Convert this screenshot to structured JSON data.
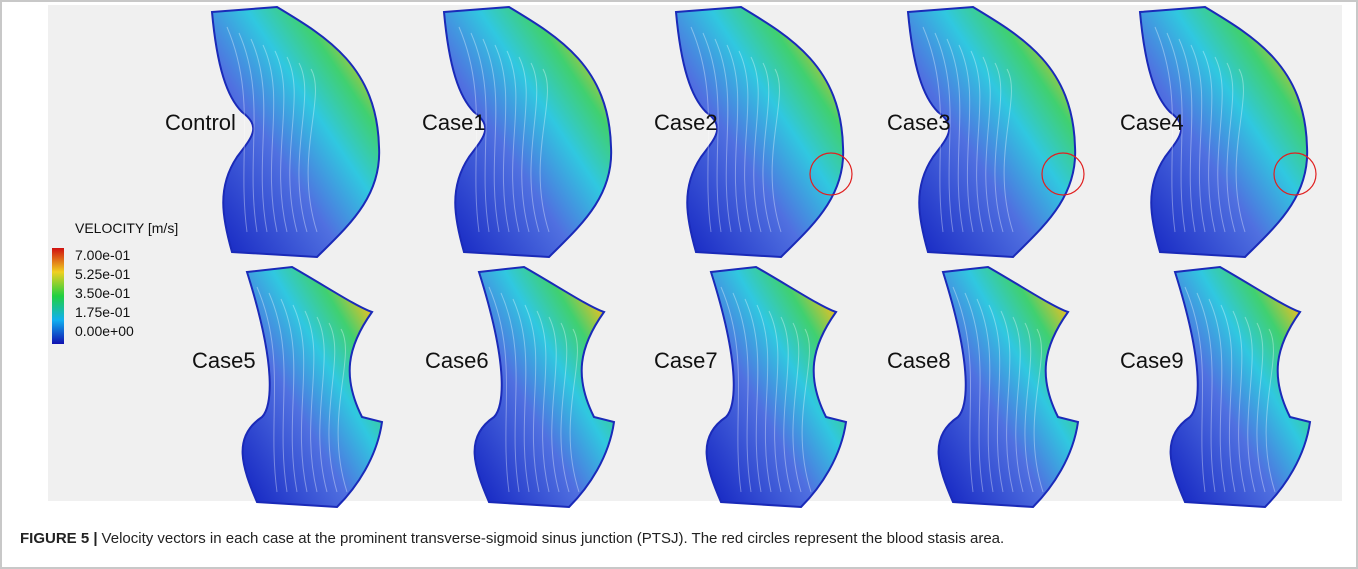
{
  "figure": {
    "panels": [
      "Control",
      "Case1",
      "Case2",
      "Case3",
      "Case4",
      "Case5",
      "Case6",
      "Case7",
      "Case8",
      "Case9"
    ],
    "legend": {
      "title": "VELOCITY [m/s]",
      "labels": [
        "7.00e-01",
        "5.25e-01",
        "3.50e-01",
        "1.75e-01",
        "0.00e+00"
      ]
    },
    "caption": {
      "label": "FIGURE 5 |",
      "text": "Velocity vectors in each case at the prominent transverse-sigmoid sinus junction (PTSJ). The red circles represent the blood stasis area."
    }
  }
}
